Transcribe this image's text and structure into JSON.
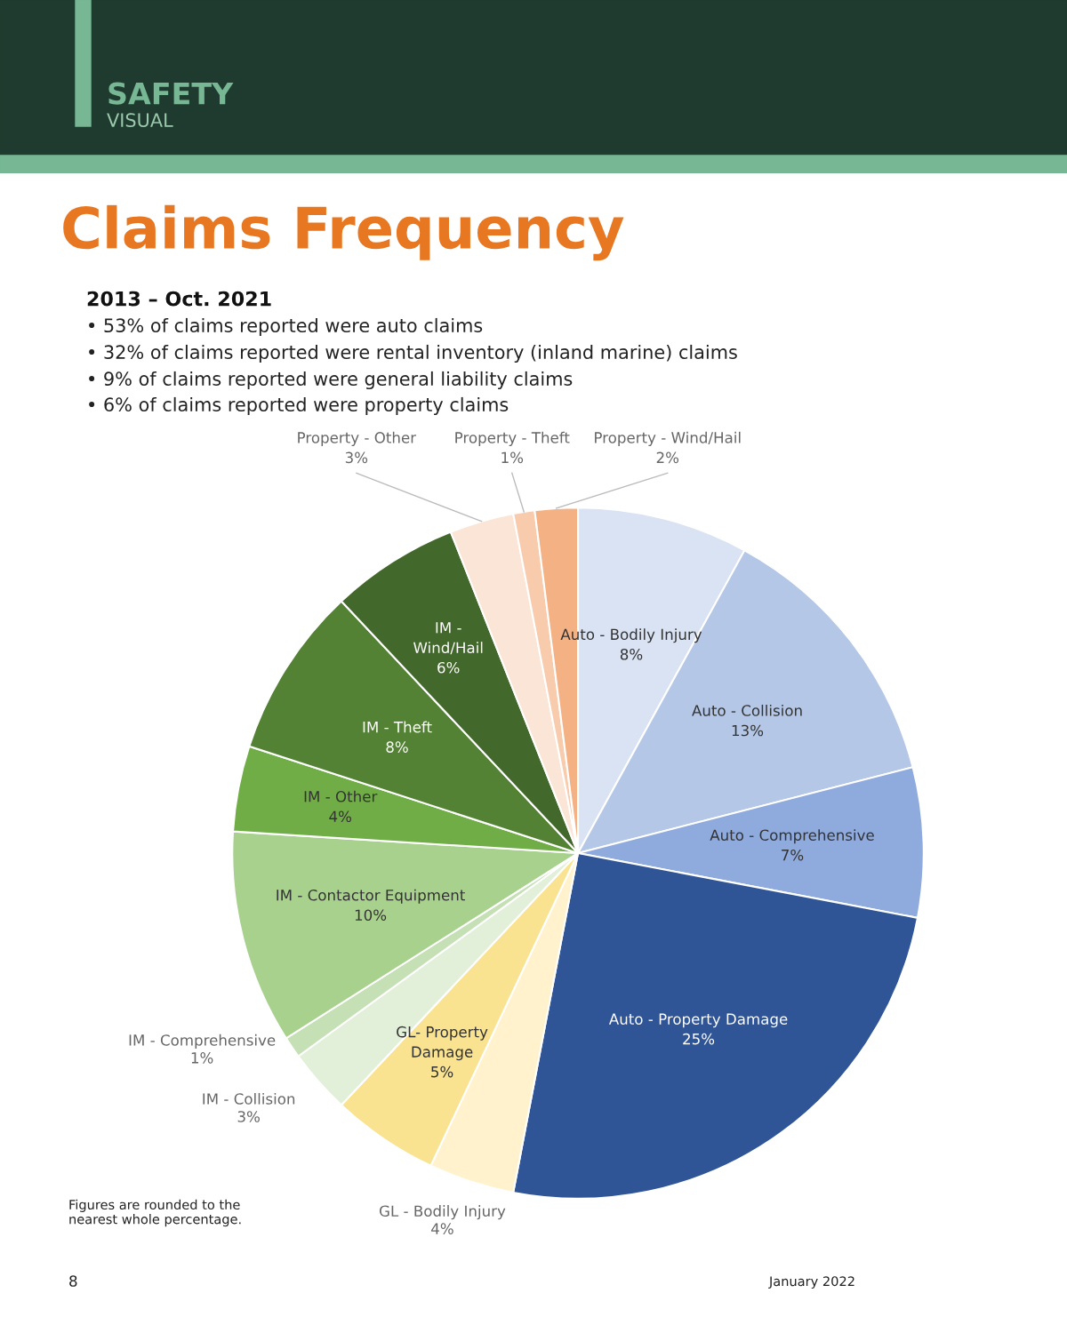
{
  "chart_data": {
    "type": "pie",
    "title": "Claims Frequency",
    "subtitle": "2013 – Oct. 2021",
    "categories": [
      "Auto - Bodily Injury",
      "Auto - Collision",
      "Auto - Comprehensive",
      "Auto - Property Damage",
      "GL - Bodily Injury",
      "GL- Property Damage",
      "IM - Collision",
      "IM - Comprehensive",
      "IM - Contactor Equipment",
      "IM - Other",
      "IM - Theft",
      "IM - Wind/Hail",
      "Property - Other",
      "Property - Theft",
      "Property - Wind/Hail"
    ],
    "values": [
      8,
      13,
      7,
      25,
      4,
      5,
      3,
      1,
      10,
      4,
      8,
      6,
      3,
      1,
      2
    ],
    "colors": [
      "#dae3f3",
      "#b4c7e7",
      "#8faadc",
      "#2f5597",
      "#fff2cc",
      "#f9e390",
      "#e2f0d9",
      "#c5e0b4",
      "#a9d18e",
      "#70ad47",
      "#548235",
      "#43682b",
      "#fbe5d6",
      "#f8cbad",
      "#f4b183"
    ],
    "value_labels": [
      "8%",
      "13%",
      "7%",
      "25%",
      "4%",
      "5%",
      "3%",
      "1%",
      "10%",
      "4%",
      "8%",
      "6%",
      "3%",
      "1%",
      "2%"
    ],
    "legend": false,
    "annotations": [
      "SAFETY",
      "VISUAL",
      "• 53% of claims reported were auto claims",
      "• 32% of claims reported were rental inventory (inland marine) claims",
      "• 9% of claims reported were general liability claims",
      "• 6% of claims reported were property claims",
      "Figures are rounded to the\nnearest whole percentage.",
      "8",
      "January 2022"
    ]
  }
}
